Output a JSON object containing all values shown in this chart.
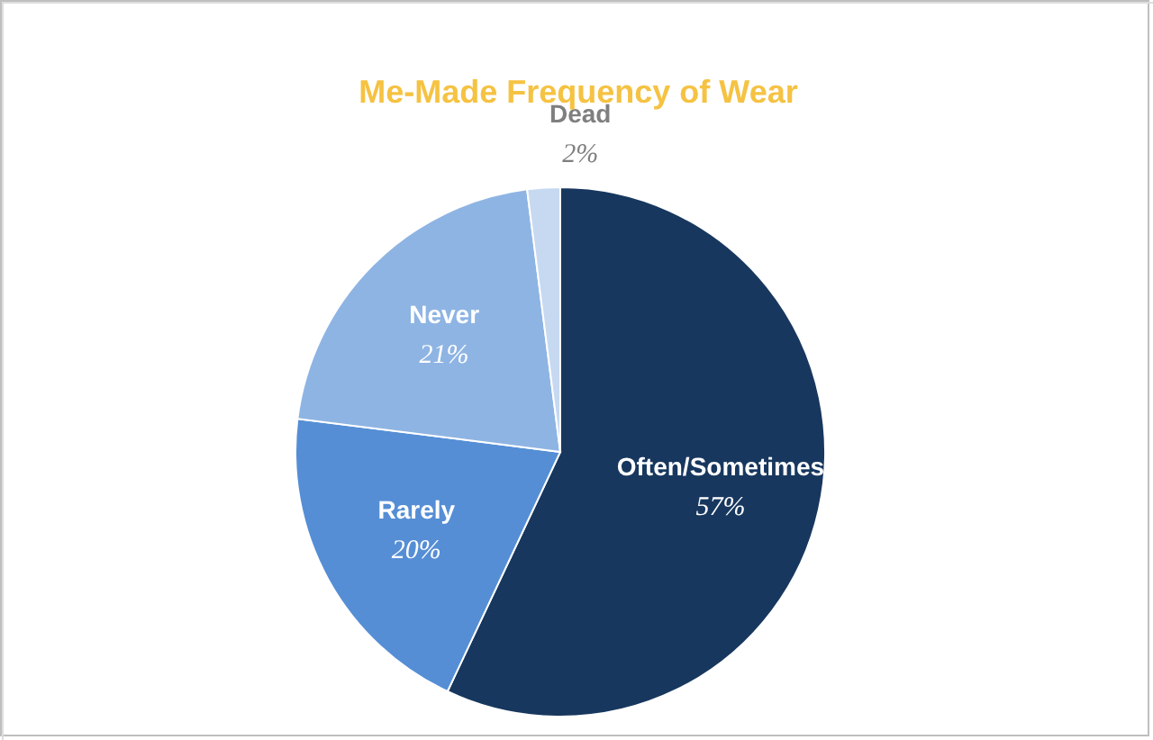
{
  "chart_data": {
    "type": "pie",
    "title": "Me-Made Frequency of Wear",
    "categories": [
      "Often/Sometimes",
      "Rarely",
      "Never",
      "Dead"
    ],
    "values": [
      57,
      20,
      21,
      2
    ],
    "colors": [
      "#17375e",
      "#558ed5",
      "#8eb4e3",
      "#c6d9f1"
    ],
    "value_labels": [
      "57%",
      "20%",
      "21%",
      "2%"
    ],
    "legend": false
  }
}
